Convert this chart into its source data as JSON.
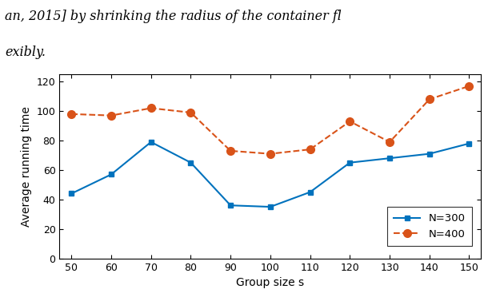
{
  "x": [
    50,
    60,
    70,
    80,
    90,
    100,
    110,
    120,
    130,
    140,
    150
  ],
  "n300_y": [
    44,
    57,
    79,
    65,
    36,
    35,
    45,
    65,
    68,
    71,
    78
  ],
  "n400_y": [
    98,
    97,
    102,
    99,
    73,
    71,
    74,
    93,
    79,
    108,
    117
  ],
  "n300_color": "#0072BD",
  "n400_color": "#D95319",
  "xlabel": "Group size s",
  "ylabel": "Average running time",
  "xlim": [
    47,
    153
  ],
  "ylim": [
    0,
    125
  ],
  "yticks": [
    0,
    20,
    40,
    60,
    80,
    100,
    120
  ],
  "xticks": [
    50,
    60,
    70,
    80,
    90,
    100,
    110,
    120,
    130,
    140,
    150
  ],
  "legend_labels": [
    "N=300",
    "N=400"
  ],
  "top_text_line1": "an, 2015] by shrinking the radius of the container fl",
  "top_text_line2": "exibly."
}
